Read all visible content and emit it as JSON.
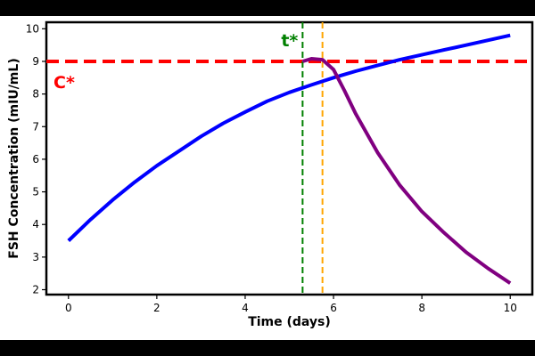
{
  "chart_data": {
    "type": "line",
    "xlabel": "Time (days)",
    "ylabel": "FSH Concentration (mIU/mL)",
    "xlim": [
      -0.5,
      10.5
    ],
    "ylim": [
      1.85,
      10.2
    ],
    "x_ticks": [
      0,
      2,
      4,
      6,
      8,
      10
    ],
    "y_ticks": [
      2,
      3,
      4,
      5,
      6,
      7,
      8,
      9,
      10
    ],
    "grid": false,
    "series": [
      {
        "color": "#0000ff",
        "style": "solid",
        "x": [
          0,
          0.5,
          1,
          1.5,
          2,
          2.5,
          3,
          3.5,
          4,
          4.5,
          5,
          5.5,
          6,
          6.5,
          7,
          7.5,
          8,
          8.5,
          9,
          9.5,
          10
        ],
        "y": [
          3.5,
          4.15,
          4.75,
          5.3,
          5.8,
          6.25,
          6.7,
          7.1,
          7.45,
          7.78,
          8.05,
          8.28,
          8.5,
          8.7,
          8.88,
          9.05,
          9.2,
          9.35,
          9.5,
          9.65,
          9.8
        ]
      },
      {
        "color": "#800080",
        "style": "solid",
        "x": [
          5.3,
          5.5,
          5.75,
          6,
          6.25,
          6.5,
          7,
          7.5,
          8,
          8.5,
          9,
          9.5,
          10
        ],
        "y": [
          9.0,
          9.08,
          9.05,
          8.75,
          8.1,
          7.4,
          6.2,
          5.2,
          4.4,
          3.75,
          3.15,
          2.65,
          2.2
        ]
      }
    ],
    "reference_lines": [
      {
        "orientation": "horizontal",
        "value": 9,
        "color": "#ff0000",
        "style": "dashed",
        "label": "C*"
      },
      {
        "orientation": "vertical",
        "value": 5.3,
        "color": "#008000",
        "style": "dashed",
        "label": "t*"
      },
      {
        "orientation": "vertical",
        "value": 5.75,
        "color": "#ffa500",
        "style": "dashed",
        "label": ""
      }
    ]
  }
}
